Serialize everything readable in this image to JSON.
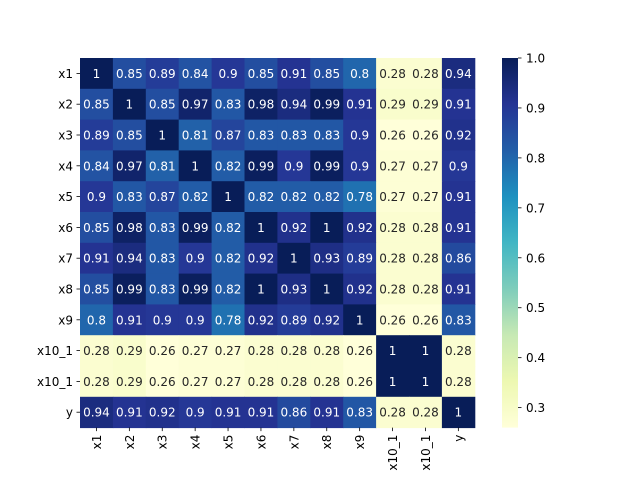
{
  "chart_data": {
    "type": "heatmap",
    "title": "",
    "xlabel": "",
    "ylabel": "",
    "x_labels": [
      "x1",
      "x2",
      "x3",
      "x4",
      "x5",
      "x6",
      "x7",
      "x8",
      "x9",
      "x10_1",
      "x10_1",
      "y"
    ],
    "y_labels": [
      "x1",
      "x2",
      "x3",
      "x4",
      "x5",
      "x6",
      "x7",
      "x8",
      "x9",
      "x10_1",
      "x10_1",
      "y"
    ],
    "values": [
      [
        1,
        0.85,
        0.89,
        0.84,
        0.9,
        0.85,
        0.91,
        0.85,
        0.8,
        0.28,
        0.28,
        0.94
      ],
      [
        0.85,
        1,
        0.85,
        0.97,
        0.83,
        0.98,
        0.94,
        0.99,
        0.91,
        0.29,
        0.29,
        0.91
      ],
      [
        0.89,
        0.85,
        1,
        0.81,
        0.87,
        0.83,
        0.83,
        0.83,
        0.9,
        0.26,
        0.26,
        0.92
      ],
      [
        0.84,
        0.97,
        0.81,
        1,
        0.82,
        0.99,
        0.9,
        0.99,
        0.9,
        0.27,
        0.27,
        0.9
      ],
      [
        0.9,
        0.83,
        0.87,
        0.82,
        1,
        0.82,
        0.82,
        0.82,
        0.78,
        0.27,
        0.27,
        0.91
      ],
      [
        0.85,
        0.98,
        0.83,
        0.99,
        0.82,
        1,
        0.92,
        1,
        0.92,
        0.28,
        0.28,
        0.91
      ],
      [
        0.91,
        0.94,
        0.83,
        0.9,
        0.82,
        0.92,
        1,
        0.93,
        0.89,
        0.28,
        0.28,
        0.86
      ],
      [
        0.85,
        0.99,
        0.83,
        0.99,
        0.82,
        1,
        0.93,
        1,
        0.92,
        0.28,
        0.28,
        0.91
      ],
      [
        0.8,
        0.91,
        0.9,
        0.9,
        0.78,
        0.92,
        0.89,
        0.92,
        1,
        0.26,
        0.26,
        0.83
      ],
      [
        0.28,
        0.29,
        0.26,
        0.27,
        0.27,
        0.28,
        0.28,
        0.28,
        0.26,
        1,
        1,
        0.28
      ],
      [
        0.28,
        0.29,
        0.26,
        0.27,
        0.27,
        0.28,
        0.28,
        0.28,
        0.26,
        1,
        1,
        0.28
      ],
      [
        0.94,
        0.91,
        0.92,
        0.9,
        0.91,
        0.91,
        0.86,
        0.91,
        0.83,
        0.28,
        0.28,
        1
      ]
    ],
    "annotated": true,
    "colormap": "YlGnBu",
    "colormap_stops": [
      "#ffffd9",
      "#edf8b1",
      "#c7e9b4",
      "#7fcdbb",
      "#41b6c4",
      "#1d91c0",
      "#225ea8",
      "#253494",
      "#081d58"
    ],
    "vmin": 0.26,
    "vmax": 1.0,
    "colorbar": {
      "ticks": [
        0.3,
        0.4,
        0.5,
        0.6,
        0.7,
        0.8,
        0.9,
        1.0
      ],
      "tick_labels": [
        "0.3",
        "0.4",
        "0.5",
        "0.6",
        "0.7",
        "0.8",
        "0.9",
        "1.0"
      ],
      "placement": "right"
    },
    "grid": false,
    "legend": "none"
  }
}
